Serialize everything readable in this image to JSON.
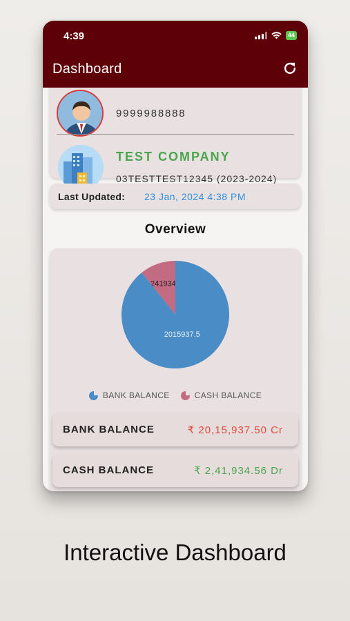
{
  "status_bar": {
    "time": "4:39",
    "battery": "44"
  },
  "header": {
    "title": "Dashboard",
    "refresh_icon": "refresh-icon"
  },
  "profile": {
    "phone": "9999988888",
    "company_name": "TEST COMPANY",
    "company_code": "03TESTTEST12345 (2023-2024)"
  },
  "last_updated": {
    "label": "Last Updated:",
    "value": "23 Jan, 2024 4:38 PM"
  },
  "overview": {
    "title": "Overview"
  },
  "chart_data": {
    "type": "pie",
    "slices": [
      {
        "name": "BANK BALANCE",
        "value": 2015937.5,
        "label": "2015937.5",
        "color": "#4a8cc5"
      },
      {
        "name": "CASH BALANCE",
        "value": 241934.56,
        "label": "241934.56",
        "color": "#c36b80"
      }
    ],
    "legend": [
      "BANK BALANCE",
      "CASH BALANCE"
    ],
    "legend_position": "bottom"
  },
  "balances": [
    {
      "label": "BANK BALANCE",
      "value": "₹ 20,15,937.50 Cr",
      "color": "#e04a3c"
    },
    {
      "label": "CASH BALANCE",
      "value": "₹ 2,41,934.56 Dr",
      "color": "#4aa64c"
    }
  ],
  "caption": "Interactive Dashboard"
}
